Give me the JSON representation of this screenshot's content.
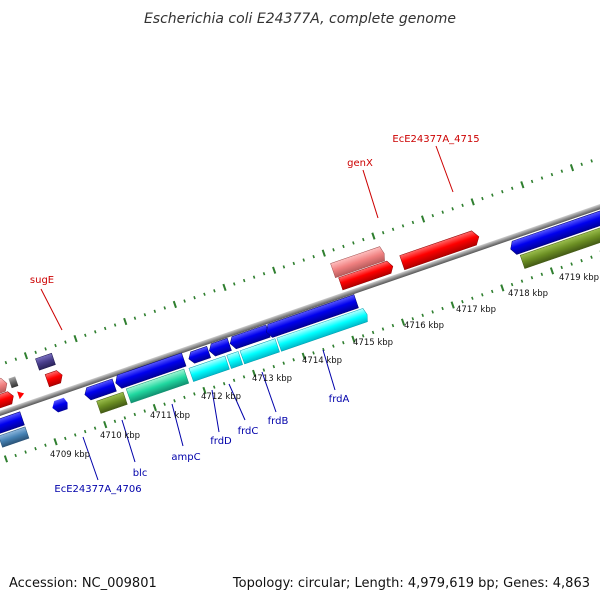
{
  "title": "Escherichia coli E24377A, complete genome",
  "footer": {
    "accession": "Accession: NC_009801",
    "summary": "Topology: circular; Length: 4,979,619 bp; Genes: 4,863"
  },
  "colors": {
    "backbone": "#8f8f8f",
    "tick": "#2f7f2f",
    "forward_label": "#cc0000",
    "reverse_label": "#0000aa",
    "red": "#ff0000",
    "pink": "#f08080",
    "blue": "#0000ee",
    "cyan": "#00ffff",
    "olive": "#6b8e23",
    "dark_slate": "#483d8b",
    "gray": "#666666",
    "steelblue": "#4682b4",
    "teal_green": "#20b28a"
  },
  "kbp_ticks": [
    "4709 kbp",
    "4710 kbp",
    "4711 kbp",
    "4712 kbp",
    "4713 kbp",
    "4714 kbp",
    "4715 kbp",
    "4716 kbp",
    "4717 kbp",
    "4718 kbp",
    "4719 kbp"
  ],
  "gene_labels": {
    "sugE": "sugE",
    "genX": "genX",
    "EcE24377A_4715": "EcE24377A_4715",
    "EcE24377A_4706": "EcE24377A_4706",
    "blc": "blc",
    "ampC": "ampC",
    "frdD": "frdD",
    "frdC": "frdC",
    "frdB": "frdB",
    "frdA": "frdA"
  }
}
